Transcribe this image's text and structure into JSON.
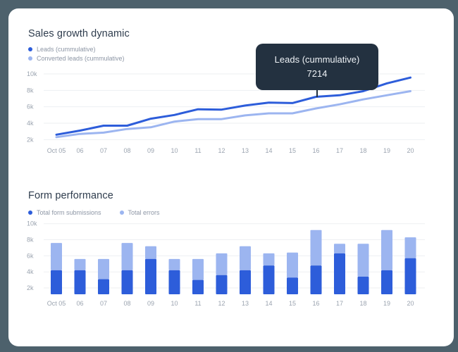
{
  "colors": {
    "backdrop": "#4d616c",
    "card": "#ffffff",
    "primary_blue": "#2d5dda",
    "light_blue": "#9cb5f0",
    "grid": "#edeff2",
    "axis_text": "#9aa3af",
    "legend_text": "#8d96a5",
    "title_text": "#2e3c4d",
    "tooltip_bg": "#233140"
  },
  "chart_data": [
    {
      "type": "line",
      "title": "Sales growth dynamic",
      "categories": [
        "Oct 05",
        "06",
        "07",
        "08",
        "09",
        "10",
        "11",
        "12",
        "13",
        "14",
        "15",
        "16",
        "17",
        "18",
        "19",
        "20"
      ],
      "series": [
        {
          "name": "Leads (cummulative)",
          "color": "#2d5dda",
          "values": [
            2600,
            3100,
            3700,
            3700,
            4550,
            5000,
            5700,
            5650,
            6150,
            6500,
            6450,
            7214,
            7400,
            7900,
            8850,
            9550
          ]
        },
        {
          "name": "Converted leads (cummulative)",
          "color": "#9cb5f0",
          "values": [
            2300,
            2700,
            2850,
            3300,
            3500,
            4200,
            4500,
            4500,
            4950,
            5200,
            5200,
            5800,
            6300,
            6900,
            7400,
            7900
          ]
        }
      ],
      "y_ticks": [
        "10k",
        "8k",
        "6k",
        "4k",
        "2k"
      ],
      "ylim": [
        1300,
        10000
      ],
      "grid": true,
      "legend_position": "top-left-vertical",
      "tooltip": {
        "label": "Leads (cummulative)",
        "value": "7214",
        "category": "16",
        "category_index": 11
      }
    },
    {
      "type": "bar",
      "stacked": true,
      "title": "Form performance",
      "categories": [
        "Oct 05",
        "06",
        "07",
        "08",
        "09",
        "10",
        "11",
        "12",
        "13",
        "14",
        "15",
        "16",
        "17",
        "18",
        "19",
        "20"
      ],
      "series": [
        {
          "name": "Total form submissions",
          "color": "#2d5dda",
          "values": [
            4200,
            4200,
            3100,
            4200,
            5600,
            4200,
            3000,
            3600,
            4200,
            4800,
            3300,
            4800,
            6300,
            3400,
            4200,
            5700
          ]
        },
        {
          "name": "Total errors",
          "color": "#9cb5f0",
          "values": [
            3400,
            1400,
            2500,
            3400,
            1600,
            1400,
            2600,
            2700,
            3000,
            1500,
            3100,
            4400,
            1200,
            4100,
            5000,
            2600
          ]
        }
      ],
      "y_ticks": [
        "10k",
        "8k",
        "6k",
        "4k",
        "2k"
      ],
      "ylim": [
        1200,
        10000
      ],
      "grid": true,
      "legend_position": "top-horizontal"
    }
  ]
}
